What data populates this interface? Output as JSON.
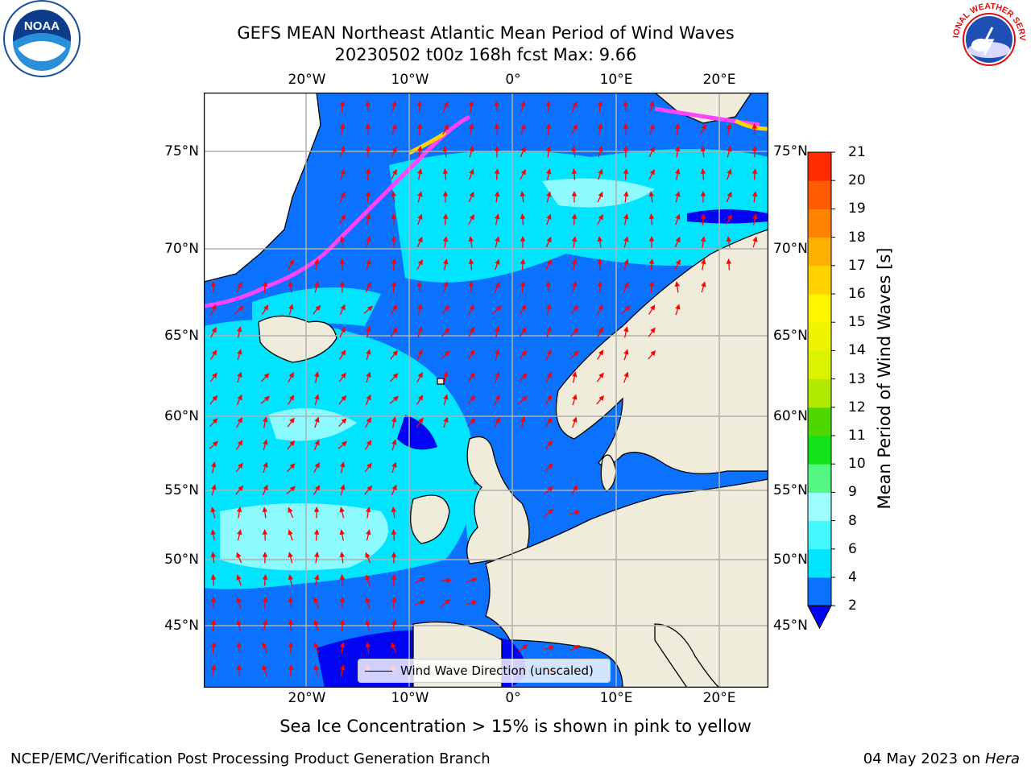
{
  "title_line1": "GEFS MEAN Northeast Atlantic Mean Period of Wind Waves",
  "title_line2": "20230502 t00z 168h fcst   Max: 9.66",
  "lon_labels": [
    "20°W",
    "10°W",
    "0°",
    "10°E",
    "20°E"
  ],
  "lat_labels_left": [
    "75°N",
    "70°N",
    "65°N",
    "60°N",
    "55°N",
    "50°N",
    "45°N"
  ],
  "lat_labels_right": [
    "75°N",
    "70°N",
    "65°N",
    "60°N",
    "55°N",
    "50°N",
    "45°N"
  ],
  "colorbar": {
    "title": "Mean Period of Wind Waves [s]",
    "ticks": [
      "2",
      "4",
      "6",
      "8",
      "9",
      "10",
      "11",
      "12",
      "13",
      "14",
      "15",
      "16",
      "17",
      "18",
      "19",
      "20",
      "21"
    ],
    "colors": [
      "#0a72ff",
      "#00e4ff",
      "#45f7ff",
      "#9dfdff",
      "#55f783",
      "#13e31b",
      "#4fd700",
      "#b2e900",
      "#d9f300",
      "#eef400",
      "#fff600",
      "#ffd200",
      "#ffb100",
      "#ff8200",
      "#ff5b00",
      "#ff2b00"
    ],
    "extend_color": "#0004f0"
  },
  "legend_label": "Wind Wave Direction (unscaled)",
  "note": "Sea Ice Concentration > 15% is shown in pink to yellow",
  "footer_left": "NCEP/EMC/Verification Post Processing Product Generation Branch",
  "footer_date": "04 May 2023 on ",
  "footer_machine": "Hera",
  "logo_left_text": "NOAA",
  "logo_right_text": "NATIONAL WEATHER SERVICE",
  "colors": {
    "land": "#efecdc",
    "ocean_deep": "#0a72ff",
    "ocean_cyan": "#00e4ff",
    "arrow": "#ff0000",
    "grid": "#b0b0b0"
  }
}
